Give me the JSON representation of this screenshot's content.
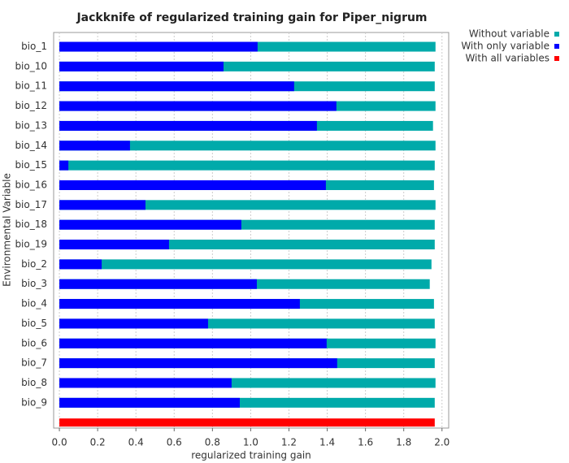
{
  "chart_data": {
    "type": "bar",
    "orientation": "horizontal",
    "title": "Jackknife of regularized training gain for Piper_nigrum",
    "xlabel": "regularized training gain",
    "ylabel": "Environmental Variable",
    "categories": [
      "bio_1",
      "bio_10",
      "bio_11",
      "bio_12",
      "bio_13",
      "bio_14",
      "bio_15",
      "bio_16",
      "bio_17",
      "bio_18",
      "bio_19",
      "bio_2",
      "bio_3",
      "bio_4",
      "bio_5",
      "bio_6",
      "bio_7",
      "bio_8",
      "bio_9",
      null
    ],
    "series": [
      {
        "name": "Without variable",
        "color": "#00aaaa",
        "values": [
          1.966,
          1.962,
          1.962,
          1.966,
          1.953,
          1.966,
          1.962,
          1.958,
          1.966,
          1.962,
          1.962,
          1.945,
          1.936,
          1.958,
          1.962,
          1.966,
          1.962,
          1.966,
          1.962,
          null
        ]
      },
      {
        "name": "With only variable",
        "color": "#0000ff",
        "values": [
          1.036,
          0.858,
          1.227,
          1.448,
          1.346,
          0.369,
          0.047,
          1.393,
          0.45,
          0.951,
          0.573,
          0.221,
          1.032,
          1.257,
          0.777,
          1.397,
          1.452,
          0.9,
          0.943,
          null
        ]
      },
      {
        "name": "With all variables",
        "color": "#ff0000",
        "values": [
          null,
          null,
          null,
          null,
          null,
          null,
          null,
          null,
          null,
          null,
          null,
          null,
          null,
          null,
          null,
          null,
          null,
          null,
          null,
          1.962
        ]
      }
    ],
    "xlim": [
      -0.03,
      2.035
    ],
    "xticks": [
      {
        "value": 0,
        "label": "0.0"
      },
      0.2,
      0.4,
      0.6,
      0.8,
      {
        "value": 1,
        "label": "1.0"
      },
      1.2,
      1.4,
      1.6,
      1.8,
      {
        "value": 2,
        "label": "2.0"
      }
    ],
    "grid": true,
    "legend": "top-right"
  }
}
